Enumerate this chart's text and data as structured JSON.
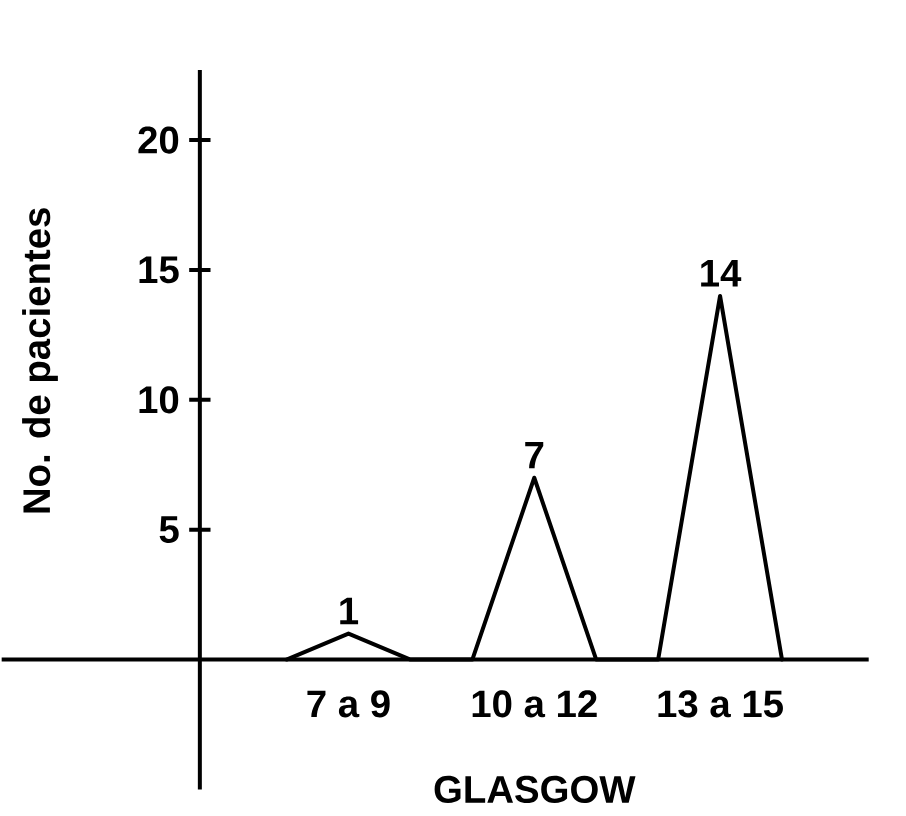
{
  "chart_data": {
    "type": "line",
    "categories": [
      null,
      "7 a 9",
      null,
      null,
      "10 a 12",
      null,
      null,
      "13 a 15",
      null
    ],
    "values": [
      0,
      1,
      0,
      0,
      7,
      0,
      0,
      14,
      0
    ],
    "value_labels": [
      null,
      "1",
      null,
      null,
      "7",
      null,
      null,
      "14",
      null
    ],
    "color": "#000000",
    "marker": "none",
    "xlabel": "GLASGOW",
    "ylabel": "No. de pacientes",
    "ylim": [
      -5,
      22.7
    ],
    "yticks": [
      5,
      10,
      15,
      20
    ]
  }
}
